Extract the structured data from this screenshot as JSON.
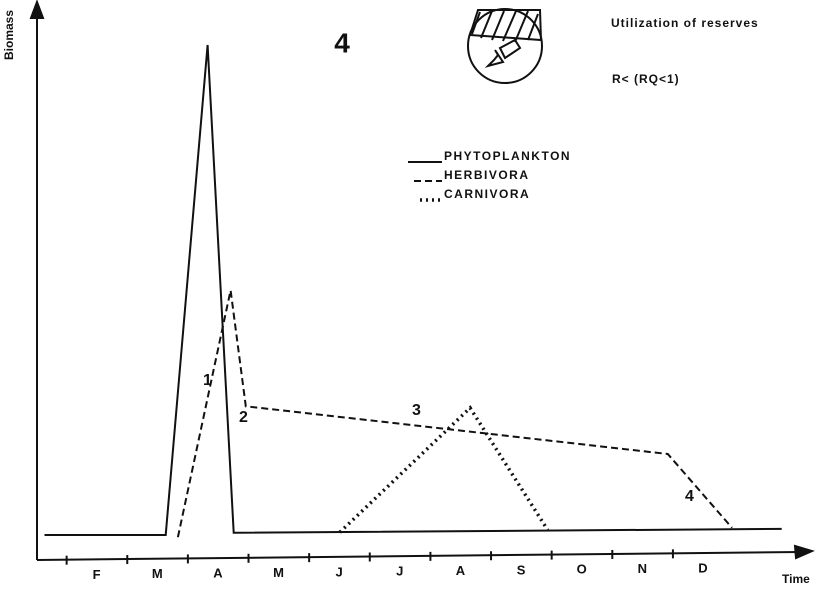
{
  "chart_data": {
    "type": "line",
    "title": "4",
    "annotations": [
      "Utilization of reserves",
      "R<  (RQ<1)",
      "1",
      "2",
      "3",
      "4"
    ],
    "y_label": "Biomass",
    "x_label": "Time",
    "xlim": [
      0.5,
      13.2
    ],
    "ylim": [
      0,
      100
    ],
    "xticks": [
      {
        "value": 1.5,
        "label": "F"
      },
      {
        "value": 2.5,
        "label": "M"
      },
      {
        "value": 3.5,
        "label": "A"
      },
      {
        "value": 4.5,
        "label": "M"
      },
      {
        "value": 5.5,
        "label": "J"
      },
      {
        "value": 6.5,
        "label": "J"
      },
      {
        "value": 7.5,
        "label": "A"
      },
      {
        "value": 8.5,
        "label": "S"
      },
      {
        "value": 9.5,
        "label": "O"
      },
      {
        "value": 10.5,
        "label": "N"
      },
      {
        "value": 11.5,
        "label": "D"
      }
    ],
    "series": [
      {
        "name": "PHYTOPLANKTON",
        "color": "#111111",
        "style": "solid",
        "x": [
          0.64,
          2.64,
          3.33,
          3.76,
          12.8
        ],
        "values": [
          4.5,
          4.5,
          92.8,
          4.9,
          5.6
        ]
      },
      {
        "name": "HERBIVORA",
        "color": "#111111",
        "style": "dashed",
        "x": [
          2.84,
          3.71,
          3.96,
          10.92,
          11.98
        ],
        "values": [
          4.1,
          48.6,
          27.7,
          19.1,
          5.8
        ]
      },
      {
        "name": "CARNIVORA",
        "color": "#111111",
        "style": "dotted",
        "x": [
          5.51,
          7.66,
          8.94
        ],
        "values": [
          5.0,
          27.4,
          5.4
        ]
      }
    ]
  }
}
